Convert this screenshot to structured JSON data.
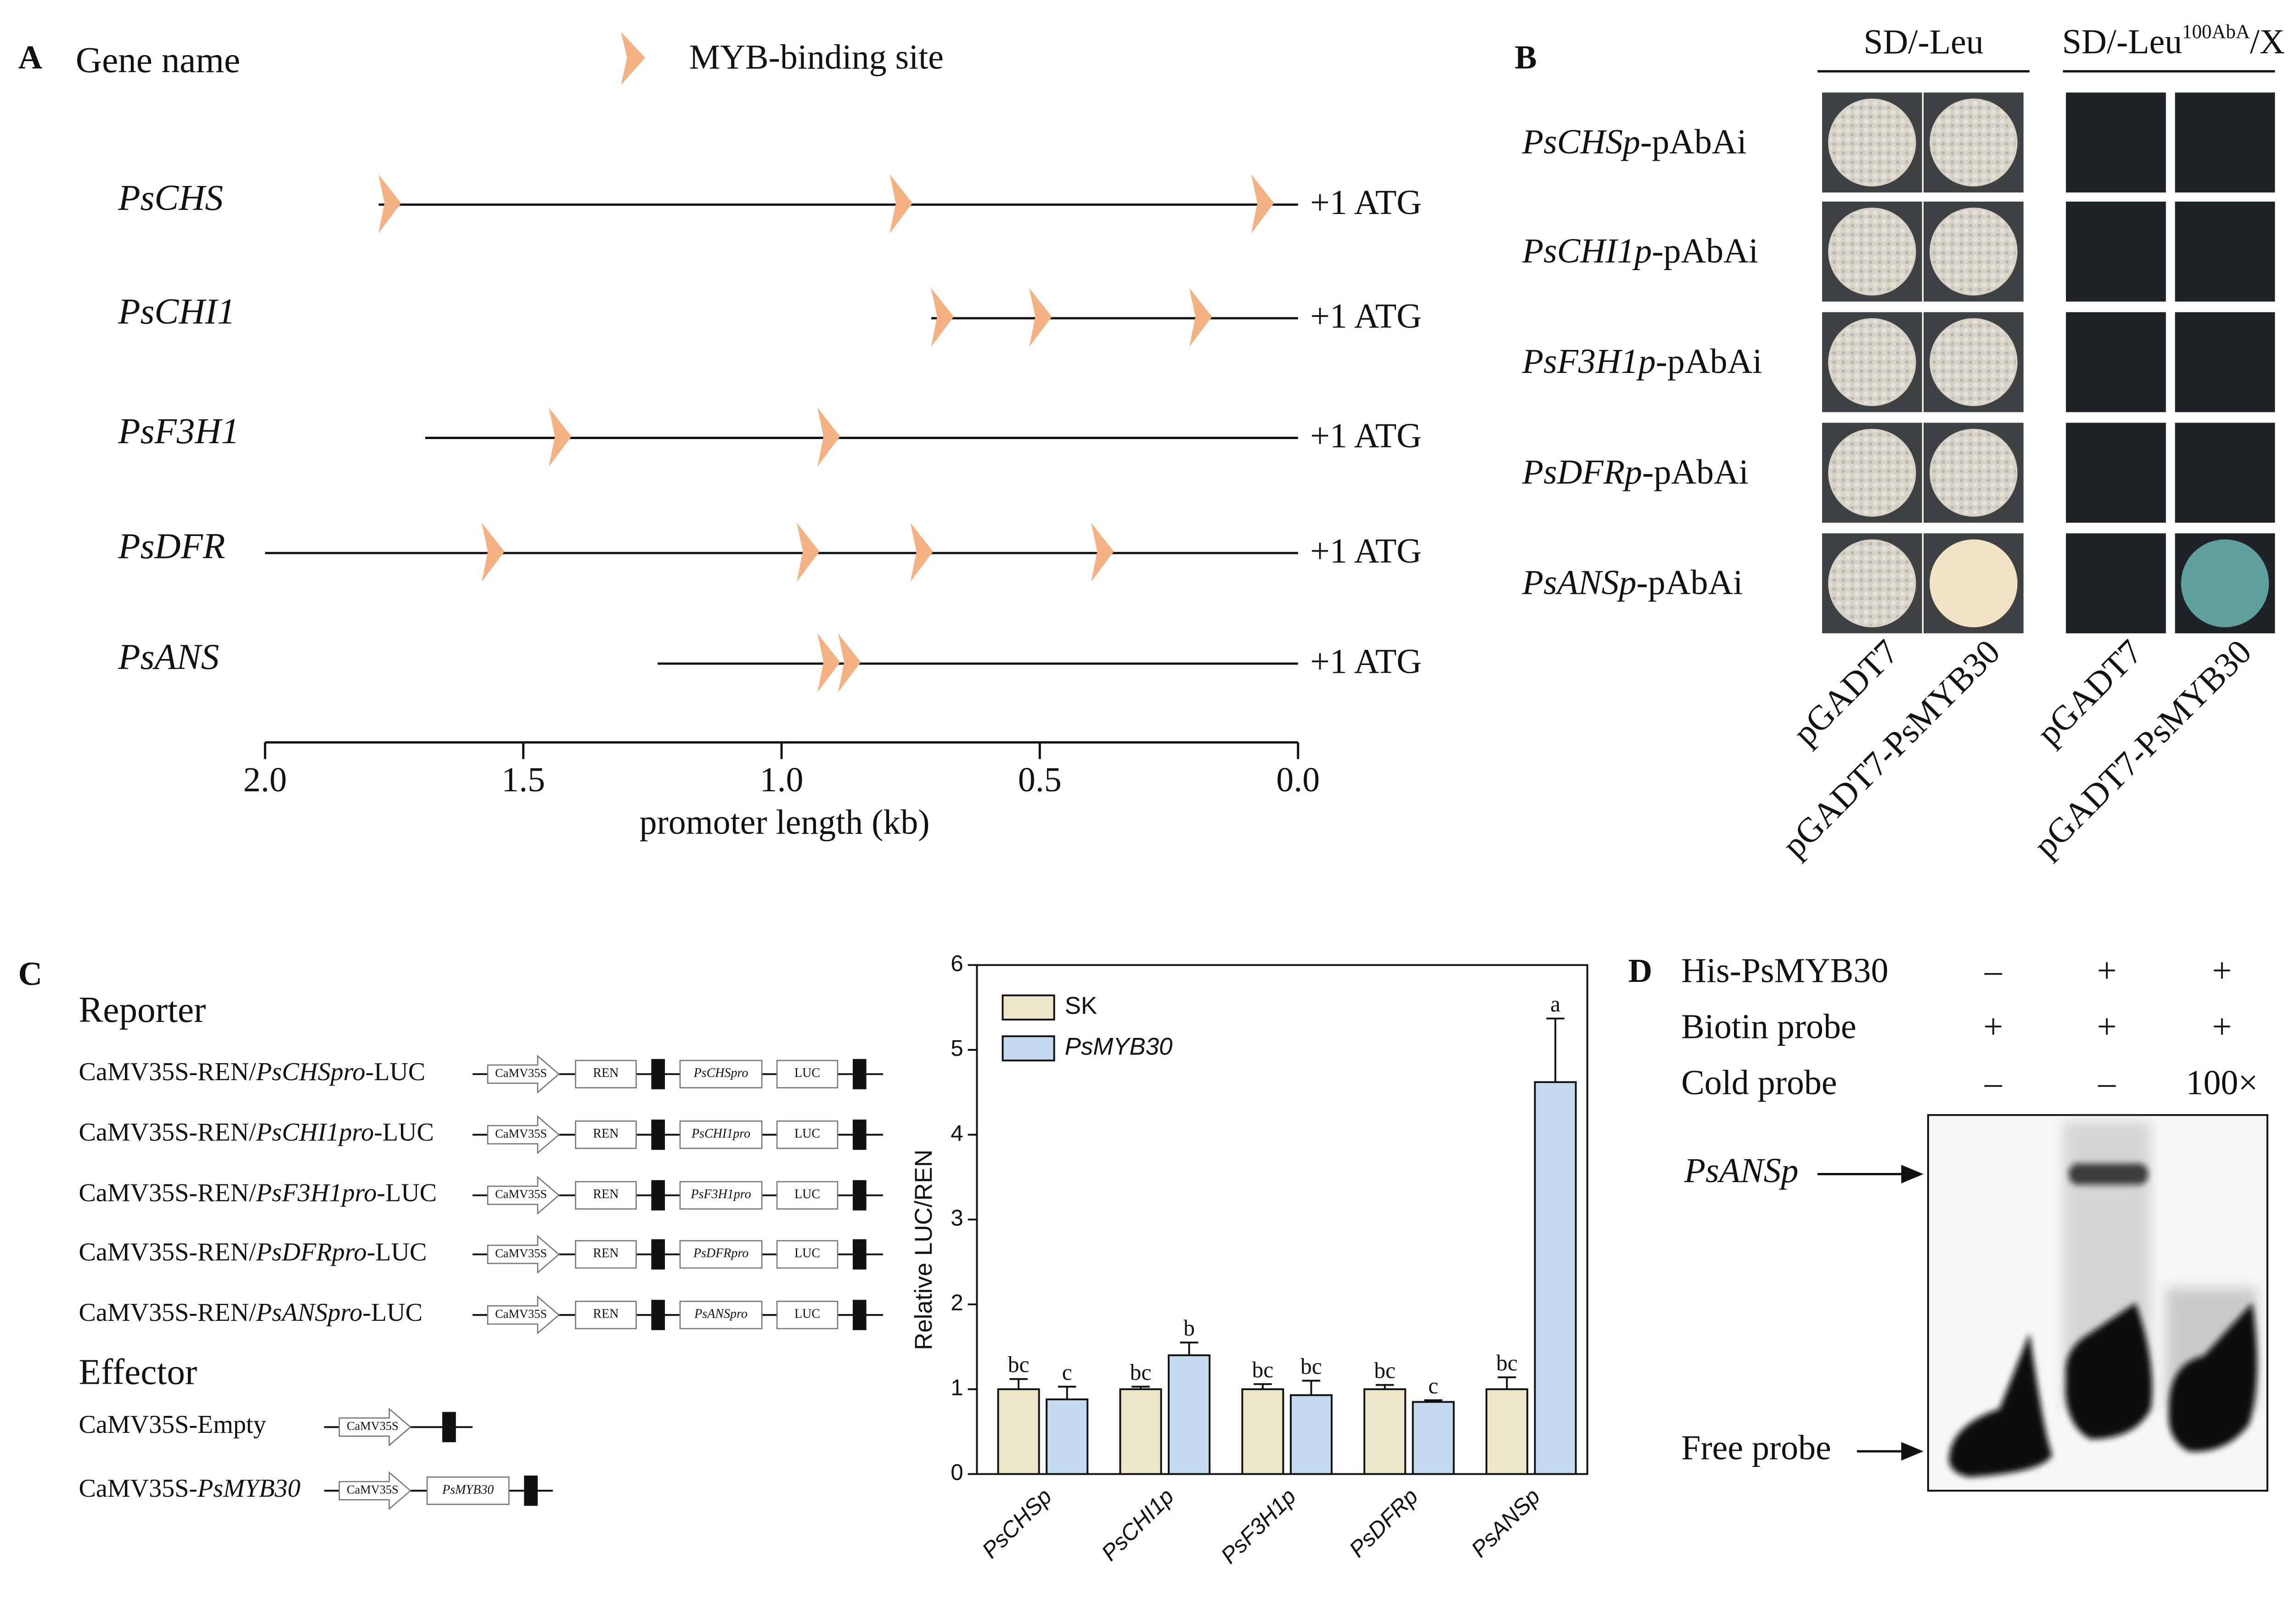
{
  "panel_a": {
    "letter": "A",
    "column_title": "Gene name",
    "legend_label": "MYB-binding site",
    "atg_label": "+1 ATG",
    "genes": [
      {
        "name": "PsCHS",
        "start": 1.78,
        "sites": [
          1.76,
          0.77,
          0.07
        ]
      },
      {
        "name": "PsCHI1",
        "start": 0.71,
        "sites": [
          0.69,
          0.5,
          0.19
        ]
      },
      {
        "name": "PsF3H1",
        "start": 1.69,
        "sites": [
          1.43,
          0.91
        ]
      },
      {
        "name": "PsDFR",
        "start": 2.0,
        "sites": [
          1.56,
          0.95,
          0.73,
          0.38
        ]
      },
      {
        "name": "PsANS",
        "start": 1.24,
        "sites": [
          0.91,
          0.87
        ]
      }
    ],
    "xlabel": "promoter length (kb)",
    "xlim": [
      2.0,
      0.0
    ],
    "xticks": [
      {
        "value": 2.0,
        "label": "2.0"
      },
      {
        "value": 1.5,
        "label": "1.5"
      },
      {
        "value": 1.0,
        "label": "1.0"
      },
      {
        "value": 0.5,
        "label": "0.5"
      },
      {
        "value": 0.0,
        "label": "0.0"
      }
    ]
  },
  "panel_b": {
    "letter": "B",
    "header_left": "SD/-Leu",
    "header_right": {
      "base": "SD/-Leu",
      "sup": "100AbA",
      "tail": "/X"
    },
    "rows": [
      {
        "gene": "PsCHSp",
        "suffix": "-pAbAi"
      },
      {
        "gene": "PsCHI1p",
        "suffix": "-pAbAi"
      },
      {
        "gene": "PsF3H1p",
        "suffix": "-pAbAi"
      },
      {
        "gene": "PsDFRp",
        "suffix": "-pAbAi"
      },
      {
        "gene": "PsANSp",
        "suffix": "-pAbAi"
      }
    ],
    "columns": [
      "pGADT7",
      "pGADT7-PsMYB30",
      "pGADT7",
      "pGADT7-PsMYB30"
    ]
  },
  "panel_c": {
    "letter": "C",
    "reporter_title": "Reporter",
    "reporters": [
      {
        "prefix": "CaMV35S-REN/",
        "promoter": "PsCHSpro",
        "suffix": "-LUC"
      },
      {
        "prefix": "CaMV35S-REN/",
        "promoter": "PsCHI1pro",
        "suffix": "-LUC"
      },
      {
        "prefix": "CaMV35S-REN/",
        "promoter": "PsF3H1pro",
        "suffix": "-LUC"
      },
      {
        "prefix": "CaMV35S-REN/",
        "promoter": "PsDFRpro",
        "suffix": "-LUC"
      },
      {
        "prefix": "CaMV35S-REN/",
        "promoter": "PsANSpro",
        "suffix": "-LUC"
      }
    ],
    "box_35s": "CaMV35S",
    "box_ren": "REN",
    "box_luc": "LUC",
    "effector_title": "Effector",
    "effector_empty": "CaMV35S-Empty",
    "effector_myb": {
      "prefix": "CaMV35S-",
      "gene": "PsMYB30"
    }
  },
  "chart_data": {
    "type": "bar",
    "ylabel": "Relative LUC/REN",
    "categories": [
      "PsCHSp",
      "PsCHI1p",
      "PsF3H1p",
      "PsDFRp",
      "PsANSp"
    ],
    "series": [
      {
        "name": "SK",
        "color": "#ede6c8",
        "values": [
          1.0,
          1.0,
          1.0,
          1.0,
          1.0
        ],
        "errors": [
          0.12,
          0.03,
          0.06,
          0.05,
          0.14
        ],
        "significance": [
          "bc",
          "bc",
          "bc",
          "bc",
          "bc"
        ]
      },
      {
        "name": "PsMYB30",
        "color": "#c5d9f1",
        "values": [
          0.88,
          1.4,
          0.93,
          0.85,
          4.62
        ],
        "errors": [
          0.15,
          0.15,
          0.17,
          0.02,
          0.75
        ],
        "significance": [
          "c",
          "b",
          "bc",
          "c",
          "a"
        ]
      }
    ],
    "ylim": [
      0,
      6
    ],
    "yticks": [
      0,
      1,
      2,
      3,
      4,
      5,
      6
    ]
  },
  "panel_d": {
    "letter": "D",
    "rows": [
      {
        "label": "His-PsMYB30",
        "lanes": [
          "–",
          "+",
          "+"
        ]
      },
      {
        "label": "Biotin probe",
        "lanes": [
          "+",
          "+",
          "+"
        ]
      },
      {
        "label": "Cold probe",
        "lanes": [
          "–",
          "–",
          "100×"
        ]
      }
    ],
    "shift_label": "PsANSp",
    "free_label": "Free probe"
  }
}
